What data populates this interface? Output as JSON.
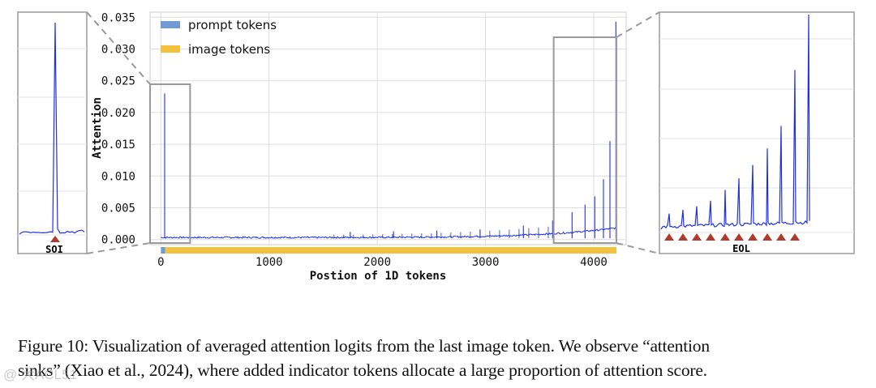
{
  "figure": {
    "legend": [
      {
        "label": "prompt tokens",
        "color": "#6f9ad3"
      },
      {
        "label": "image tokens",
        "color": "#f2c13d"
      }
    ],
    "left_inset_label": "SOI",
    "right_inset_label": "EOL",
    "marker_color": "#b03a2e",
    "line_color": "#1f2fe8"
  },
  "chart_data": {
    "type": "line",
    "xlabel": "Postion of 1D tokens",
    "ylabel": "Attention",
    "xlim": [
      -100,
      4300
    ],
    "ylim": [
      -0.0008,
      0.0358
    ],
    "xticks": [
      0,
      1000,
      2000,
      3000,
      4000
    ],
    "yticks": [
      "0.000",
      "0.005",
      "0.010",
      "0.015",
      "0.020",
      "0.025",
      "0.030",
      "0.035"
    ],
    "grid": true,
    "legend_position": "top-left",
    "token_bar": {
      "prompt_range": [
        0,
        40
      ],
      "image_range": [
        40,
        4210
      ]
    },
    "peaks": [
      {
        "x": 35,
        "y": 0.023
      },
      {
        "x": 1750,
        "y": 0.0012
      },
      {
        "x": 2150,
        "y": 0.0013
      },
      {
        "x": 2550,
        "y": 0.0014
      },
      {
        "x": 2950,
        "y": 0.0016
      },
      {
        "x": 3350,
        "y": 0.0022
      },
      {
        "x": 3620,
        "y": 0.003
      },
      {
        "x": 3800,
        "y": 0.0043
      },
      {
        "x": 3920,
        "y": 0.0055
      },
      {
        "x": 4010,
        "y": 0.0068
      },
      {
        "x": 4090,
        "y": 0.0095
      },
      {
        "x": 4150,
        "y": 0.0155
      },
      {
        "x": 4205,
        "y": 0.0343
      }
    ],
    "baseline": 0.0002,
    "highlight_boxes": [
      {
        "x0": -100,
        "x1": 270
      },
      {
        "x0": 3630,
        "x1": 4270
      }
    ],
    "soi_inset_peak": 0.035,
    "eol_inset_peaks": [
      0.0035,
      0.0041,
      0.0047,
      0.0056,
      0.0074,
      0.0093,
      0.0115,
      0.0142,
      0.0179,
      0.0271,
      0.0362
    ]
  },
  "caption": {
    "line1": "Figure 10: Visualization of averaged attention logits from the last image token. We observe “attention",
    "line2": "sinks” (Xiao et al., 2024), where added indicator tokens allocate a large proportion of attention score."
  },
  "watermark": "@ 大ACL51"
}
